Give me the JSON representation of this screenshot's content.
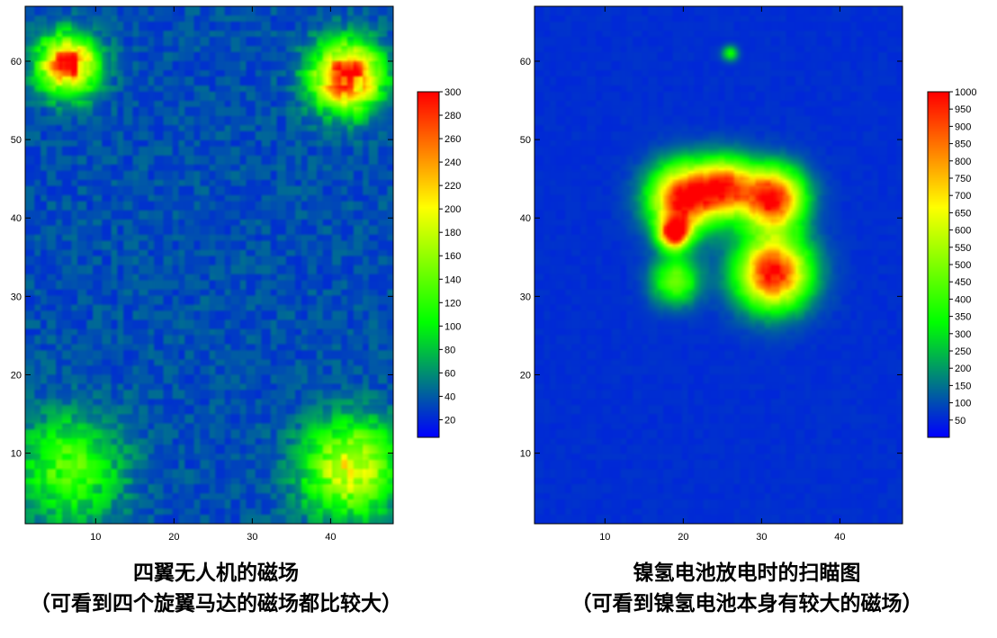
{
  "panels": [
    {
      "caption_line1": "四翼无人机的磁场",
      "caption_line2": "（可看到四个旋翼马达的磁场都比较大）"
    },
    {
      "caption_line1": "镍氢电池放电时的扫瞄图",
      "caption_line2": "（可看到镍氢电池本身有较大的磁场）"
    }
  ],
  "chart_data": [
    {
      "type": "heatmap",
      "title": "",
      "xlabel": "",
      "ylabel": "",
      "xlim": [
        1,
        48
      ],
      "ylim": [
        1,
        67
      ],
      "x_ticks": [
        10,
        20,
        30,
        40
      ],
      "y_ticks": [
        10,
        20,
        30,
        40,
        50,
        60
      ],
      "colorbar": {
        "min": 5,
        "max": 300,
        "ticks": [
          20,
          40,
          60,
          80,
          100,
          120,
          140,
          160,
          180,
          200,
          220,
          240,
          260,
          280,
          300
        ],
        "colormap": [
          "#0000ff",
          "#00ff00",
          "#ffff00",
          "#ff0000"
        ],
        "placement": "right"
      },
      "background_value": 35,
      "hotspots": [
        {
          "x": 6.5,
          "y": 59.5,
          "peak": 290,
          "radius": 3.0
        },
        {
          "x": 42,
          "y": 58,
          "peak": 300,
          "radius": 3.5
        },
        {
          "x": 6.5,
          "y": 8,
          "peak": 130,
          "radius": 5.5
        },
        {
          "x": 42.5,
          "y": 8,
          "peak": 190,
          "radius": 5.0
        }
      ]
    },
    {
      "type": "heatmap",
      "title": "",
      "xlabel": "",
      "ylabel": "",
      "xlim": [
        1,
        48
      ],
      "ylim": [
        1,
        67
      ],
      "x_ticks": [
        10,
        20,
        30,
        40
      ],
      "y_ticks": [
        10,
        20,
        30,
        40,
        50,
        60
      ],
      "colorbar": {
        "min": 0,
        "max": 1000,
        "ticks": [
          50,
          100,
          150,
          200,
          250,
          300,
          350,
          400,
          450,
          500,
          550,
          600,
          650,
          700,
          750,
          800,
          850,
          900,
          950,
          1000
        ],
        "colormap": [
          "#0000ff",
          "#00ff00",
          "#ffff00",
          "#ff0000"
        ],
        "placement": "right"
      },
      "background_value": 60,
      "hotspots": [
        {
          "x": 20,
          "y": 42.5,
          "peak": 1000,
          "radius": 3.5
        },
        {
          "x": 31.5,
          "y": 42.5,
          "peak": 1000,
          "radius": 3.2
        },
        {
          "x": 31.5,
          "y": 33,
          "peak": 1000,
          "radius": 3.8
        },
        {
          "x": 18.8,
          "y": 38,
          "peak": 950,
          "radius": 1.6
        },
        {
          "x": 25.5,
          "y": 44,
          "peak": 800,
          "radius": 3.0
        },
        {
          "x": 19,
          "y": 32,
          "peak": 480,
          "radius": 2.5
        },
        {
          "x": 26,
          "y": 61,
          "peak": 380,
          "radius": 0.8
        }
      ]
    }
  ]
}
